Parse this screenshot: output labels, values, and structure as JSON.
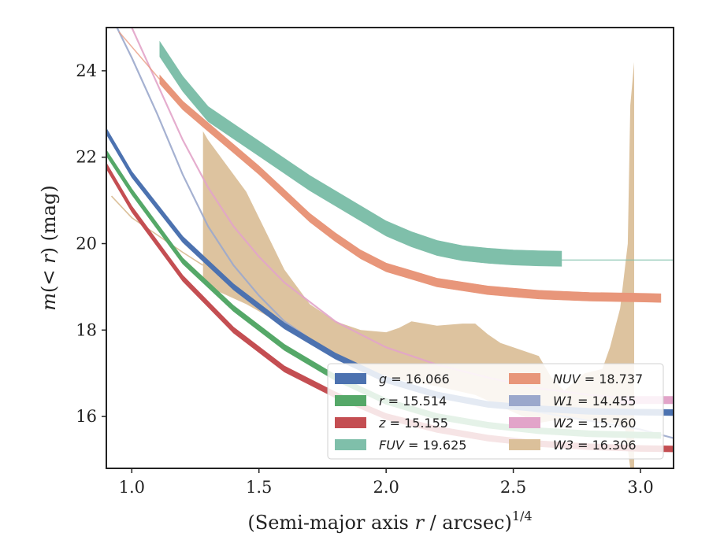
{
  "chart_data": {
    "type": "line",
    "title": "",
    "xlabel": "(Semi-major axis r / arcsec)^1/4",
    "xlabel_parts": {
      "main": "(Semi-major axis ",
      "var": "r",
      "mid": " / arcsec)",
      "sup": "1/4"
    },
    "ylabel": "m(<r) (mag)",
    "ylabel_parts": {
      "pre": "m",
      "mid": "(< ",
      "var": "r",
      "post": ") (mag)"
    },
    "xlim": [
      0.9,
      3.13
    ],
    "ylim": [
      25,
      14.8
    ],
    "y_inverted": true,
    "xticks": [
      "1.0",
      "1.5",
      "2.0",
      "2.5",
      "3.0"
    ],
    "xtick_values": [
      1.0,
      1.5,
      2.0,
      2.5,
      3.0
    ],
    "yticks": [
      "16",
      "18",
      "20",
      "22",
      "24"
    ],
    "ytick_values": [
      16,
      18,
      20,
      22,
      24
    ],
    "grid": false,
    "legend_position": "lower-right",
    "series": [
      {
        "name": "g = 16.066",
        "band": "g",
        "mag": "16.066",
        "color": "#4c72b0",
        "width": 0.14,
        "x": [
          0.9,
          1.0,
          1.2,
          1.4,
          1.6,
          1.8,
          2.0,
          2.2,
          2.4,
          2.6,
          2.8,
          3.0,
          3.13
        ],
        "y": [
          22.6,
          21.6,
          20.1,
          19.0,
          18.1,
          17.4,
          16.85,
          16.5,
          16.28,
          16.18,
          16.12,
          16.1,
          16.09
        ]
      },
      {
        "name": "r = 15.514",
        "band": "r",
        "mag": "15.514",
        "color": "#55a868",
        "width": 0.14,
        "x": [
          0.9,
          1.0,
          1.2,
          1.4,
          1.6,
          1.8,
          2.0,
          2.2,
          2.4,
          2.6,
          2.8,
          3.0,
          3.08
        ],
        "y": [
          22.1,
          21.2,
          19.6,
          18.5,
          17.6,
          16.9,
          16.35,
          16.0,
          15.8,
          15.67,
          15.6,
          15.57,
          15.56
        ]
      },
      {
        "name": "z = 15.155",
        "band": "z",
        "mag": "15.155",
        "color": "#c44e52",
        "width": 0.14,
        "x": [
          0.9,
          1.0,
          1.2,
          1.4,
          1.6,
          1.8,
          2.0,
          2.2,
          2.4,
          2.6,
          2.8,
          3.0,
          3.13
        ],
        "y": [
          21.8,
          20.8,
          19.2,
          18.0,
          17.1,
          16.5,
          16.0,
          15.7,
          15.5,
          15.37,
          15.3,
          15.26,
          15.25
        ]
      },
      {
        "name": "FUV = 19.625",
        "band": "FUV",
        "mag": "19.625",
        "color": "#7fbfaa",
        "width": 0.35,
        "x": [
          1.11,
          1.2,
          1.3,
          1.4,
          1.5,
          1.6,
          1.7,
          1.8,
          1.9,
          2.0,
          2.1,
          2.2,
          2.3,
          2.4,
          2.5,
          2.6,
          2.69
        ],
        "y": [
          24.5,
          23.7,
          23.0,
          22.6,
          22.2,
          21.8,
          21.4,
          21.05,
          20.7,
          20.35,
          20.1,
          19.9,
          19.78,
          19.72,
          19.68,
          19.66,
          19.65
        ],
        "extension": {
          "x": [
            2.69,
            3.13
          ],
          "y": [
            19.62,
            19.62
          ]
        }
      },
      {
        "name": "NUV = 18.737",
        "band": "NUV",
        "mag": "18.737",
        "color": "#e8967a",
        "width": 0.2,
        "x": [
          1.11,
          1.2,
          1.3,
          1.4,
          1.5,
          1.6,
          1.7,
          1.8,
          1.9,
          2.0,
          2.2,
          2.4,
          2.6,
          2.8,
          3.0,
          3.08
        ],
        "y": [
          23.8,
          23.2,
          22.7,
          22.2,
          21.7,
          21.15,
          20.6,
          20.15,
          19.75,
          19.45,
          19.1,
          18.92,
          18.82,
          18.77,
          18.75,
          18.74
        ],
        "extension": {
          "x": [
            0.95,
            1.11
          ],
          "y": [
            24.9,
            23.8
          ]
        }
      },
      {
        "name": "W1 = 14.455",
        "band": "W1",
        "mag": "14.455",
        "color": "#9ba8cc",
        "width": 0.06,
        "x": [
          0.9,
          1.0,
          1.1,
          1.2,
          1.3,
          1.4,
          1.5,
          1.6,
          1.8,
          2.0,
          2.2,
          2.4,
          2.6,
          2.8,
          3.0,
          3.13
        ],
        "y": [
          25.5,
          24.3,
          23.0,
          21.6,
          20.4,
          19.5,
          18.8,
          18.2,
          17.4,
          16.9,
          16.55,
          16.3,
          16.1,
          15.9,
          15.7,
          15.5
        ]
      },
      {
        "name": "W2 = 15.760",
        "band": "W2",
        "mag": "15.760",
        "color": "#e2a4c9",
        "width": 0.06,
        "x": [
          0.9,
          1.0,
          1.1,
          1.2,
          1.3,
          1.4,
          1.5,
          1.6,
          1.8,
          2.0,
          2.2,
          2.4,
          2.6,
          2.8,
          3.0,
          3.13
        ],
        "y": [
          26.0,
          25.0,
          23.7,
          22.4,
          21.3,
          20.4,
          19.7,
          19.1,
          18.2,
          17.6,
          17.2,
          16.9,
          16.65,
          16.5,
          16.4,
          16.35
        ],
        "band_extra": {
          "x": [
            2.92,
            3.13
          ],
          "y": [
            16.38,
            16.38
          ],
          "width": 0.18
        }
      },
      {
        "name": "W3 = 16.306",
        "band": "W3",
        "mag": "16.306",
        "color": "#dbc09a",
        "fill": true,
        "upper": {
          "x": [
            1.28,
            1.3,
            1.45,
            1.6,
            1.75,
            1.9,
            2.0,
            2.2,
            2.35,
            2.5,
            2.6,
            2.7,
            2.8,
            2.9,
            2.94,
            2.96,
            2.975
          ],
          "y": [
            19.2,
            19.0,
            18.6,
            18.1,
            17.6,
            17.1,
            16.9,
            16.7,
            16.5,
            16.1,
            15.85,
            15.95,
            15.9,
            15.85,
            15.7,
            14.8,
            14.8
          ]
        },
        "lower": {
          "x": [
            1.28,
            1.3,
            1.45,
            1.55,
            1.6,
            1.7,
            1.8,
            1.9,
            2.0,
            2.05,
            2.1,
            2.2,
            2.3,
            2.35,
            2.4,
            2.45,
            2.5,
            2.55,
            2.6,
            2.65,
            2.7,
            2.78,
            2.85,
            2.88,
            2.92,
            2.95,
            2.96,
            2.975
          ],
          "y": [
            22.6,
            22.4,
            21.2,
            20.0,
            19.4,
            18.6,
            18.2,
            18.0,
            17.95,
            18.05,
            18.2,
            18.1,
            18.15,
            18.15,
            17.9,
            17.7,
            17.6,
            17.5,
            17.4,
            16.9,
            16.6,
            17.0,
            17.1,
            17.6,
            18.5,
            20.0,
            23.2,
            24.2
          ]
        },
        "extension": {
          "x": [
            0.92,
            1.0,
            1.1,
            1.2,
            1.28
          ],
          "y": [
            21.1,
            20.6,
            20.2,
            19.8,
            19.5
          ]
        }
      }
    ]
  },
  "legend": {
    "entries": [
      {
        "var": "g",
        "value": " = 16.066",
        "color": "#4c72b0"
      },
      {
        "var": "r",
        "value": " = 15.514",
        "color": "#55a868"
      },
      {
        "var": "z",
        "value": " = 15.155",
        "color": "#c44e52"
      },
      {
        "var": "FUV",
        "value": " = 19.625",
        "color": "#7fbfaa"
      },
      {
        "var": "NUV",
        "value": " = 18.737",
        "color": "#e8967a"
      },
      {
        "var": "W1",
        "value": " = 14.455",
        "color": "#9ba8cc"
      },
      {
        "var": "W2",
        "value": " = 15.760",
        "color": "#e2a4c9"
      },
      {
        "var": "W3",
        "value": " = 16.306",
        "color": "#dbc09a"
      }
    ]
  }
}
